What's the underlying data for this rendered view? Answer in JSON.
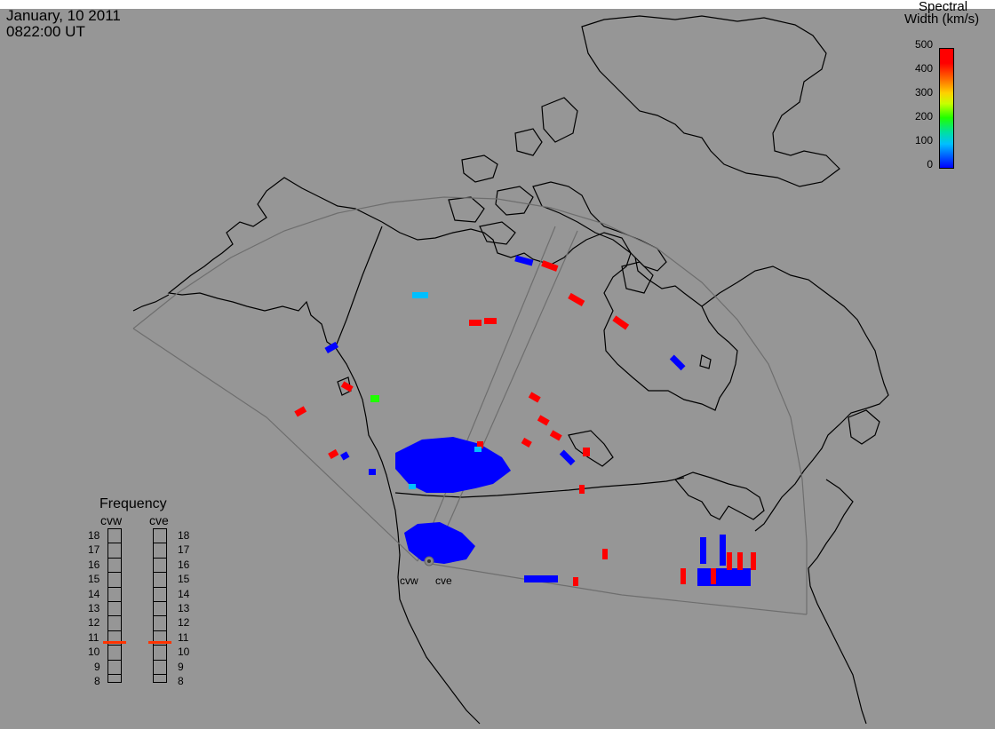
{
  "header": {
    "date": "January, 10 2011",
    "time": "0822:00 UT"
  },
  "colorbar": {
    "title_line1": "Spectral",
    "title_line2": "Width (km/s)",
    "ticks": [
      "500",
      "400",
      "300",
      "200",
      "100",
      "0"
    ],
    "range": [
      0,
      500
    ],
    "colors": [
      "#0000ff",
      "#00bfff",
      "#20ff00",
      "#ffd000",
      "#ff7000",
      "#ff0000"
    ]
  },
  "frequency": {
    "title": "Frequency",
    "radars": [
      "cvw",
      "cve"
    ],
    "levels": [
      "18",
      "17",
      "16",
      "15",
      "14",
      "13",
      "12",
      "11",
      "10",
      "9",
      "8"
    ],
    "selected": {
      "cvw": 11,
      "cve": 11
    }
  },
  "radars": {
    "site_labels": [
      "cvw",
      "cve"
    ]
  },
  "colors": {
    "background": "#969696",
    "coastline": "#000000",
    "fov": "#6e6e6e",
    "low_width": "#0000ff",
    "high_width": "#ff0000"
  }
}
